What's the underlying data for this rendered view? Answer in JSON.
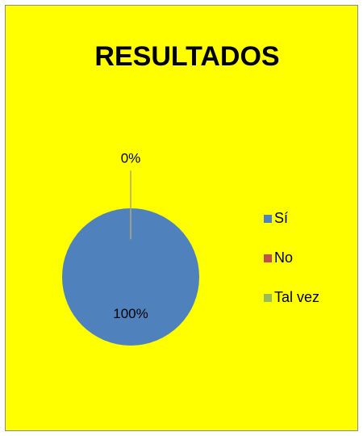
{
  "chart_data": {
    "type": "pie",
    "title": "RESULTADOS",
    "categories": [
      "Sí",
      "No",
      "Tal vez"
    ],
    "values": [
      100,
      0,
      0
    ],
    "value_labels": [
      "100%",
      "0%",
      null
    ],
    "colors": [
      "#4f81bd",
      "#c0504d",
      "#9bbb59"
    ],
    "legend": "right"
  }
}
